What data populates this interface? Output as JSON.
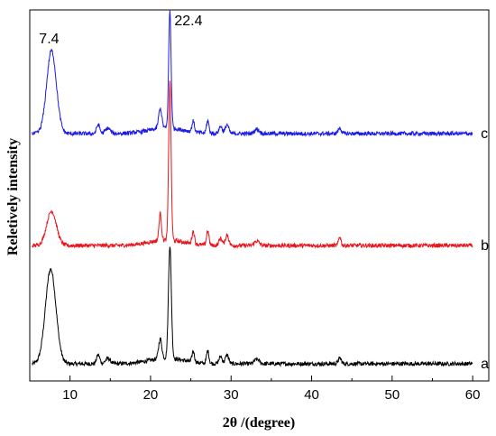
{
  "chart_data": {
    "type": "line",
    "xlabel": "2θ /(degree)",
    "ylabel": "Reletively intensity",
    "xlim": [
      5,
      62
    ],
    "xticks": [
      10,
      20,
      30,
      40,
      50,
      60
    ],
    "xtick_labels": [
      "10",
      "20",
      "30",
      "40",
      "50",
      "60"
    ],
    "yticks_shown": false,
    "grid": false,
    "legend": "none",
    "annotations": [
      {
        "text": "7.4",
        "x": 7.4
      },
      {
        "text": "22.4",
        "x": 22.4
      }
    ],
    "series": [
      {
        "label": "a",
        "color": "#000000",
        "baseline": 0,
        "peaks": [
          {
            "x": 7.6,
            "height": 105,
            "width": 0.65
          },
          {
            "x": 13.5,
            "height": 10,
            "width": 0.2
          },
          {
            "x": 14.7,
            "height": 6,
            "width": 0.3
          },
          {
            "x": 21.2,
            "height": 22,
            "width": 0.2
          },
          {
            "x": 22.4,
            "height": 125,
            "width": 0.18
          },
          {
            "x": 25.3,
            "height": 12,
            "width": 0.15
          },
          {
            "x": 27.1,
            "height": 14,
            "width": 0.15
          },
          {
            "x": 28.7,
            "height": 8,
            "width": 0.2
          },
          {
            "x": 29.5,
            "height": 10,
            "width": 0.2
          },
          {
            "x": 33.2,
            "height": 5,
            "width": 0.3
          },
          {
            "x": 43.5,
            "height": 6,
            "width": 0.2
          }
        ]
      },
      {
        "label": "b",
        "color": "#e8141c",
        "baseline": 1,
        "peaks": [
          {
            "x": 7.7,
            "height": 38,
            "width": 0.6
          },
          {
            "x": 21.2,
            "height": 30,
            "width": 0.15
          },
          {
            "x": 22.4,
            "height": 175,
            "width": 0.15
          },
          {
            "x": 25.3,
            "height": 14,
            "width": 0.15
          },
          {
            "x": 27.1,
            "height": 16,
            "width": 0.15
          },
          {
            "x": 28.7,
            "height": 8,
            "width": 0.2
          },
          {
            "x": 29.5,
            "height": 12,
            "width": 0.2
          },
          {
            "x": 33.2,
            "height": 5,
            "width": 0.3
          },
          {
            "x": 43.5,
            "height": 10,
            "width": 0.15
          }
        ]
      },
      {
        "label": "c",
        "color": "#1a1ae6",
        "baseline": 2,
        "peaks": [
          {
            "x": 7.7,
            "height": 92,
            "width": 0.6
          },
          {
            "x": 13.5,
            "height": 10,
            "width": 0.2
          },
          {
            "x": 14.7,
            "height": 6,
            "width": 0.3
          },
          {
            "x": 21.2,
            "height": 22,
            "width": 0.2
          },
          {
            "x": 22.4,
            "height": 130,
            "width": 0.15
          },
          {
            "x": 25.3,
            "height": 12,
            "width": 0.15
          },
          {
            "x": 27.1,
            "height": 14,
            "width": 0.15
          },
          {
            "x": 28.7,
            "height": 8,
            "width": 0.2
          },
          {
            "x": 29.5,
            "height": 10,
            "width": 0.2
          },
          {
            "x": 33.2,
            "height": 5,
            "width": 0.3
          },
          {
            "x": 43.5,
            "height": 6,
            "width": 0.2
          }
        ]
      }
    ]
  }
}
